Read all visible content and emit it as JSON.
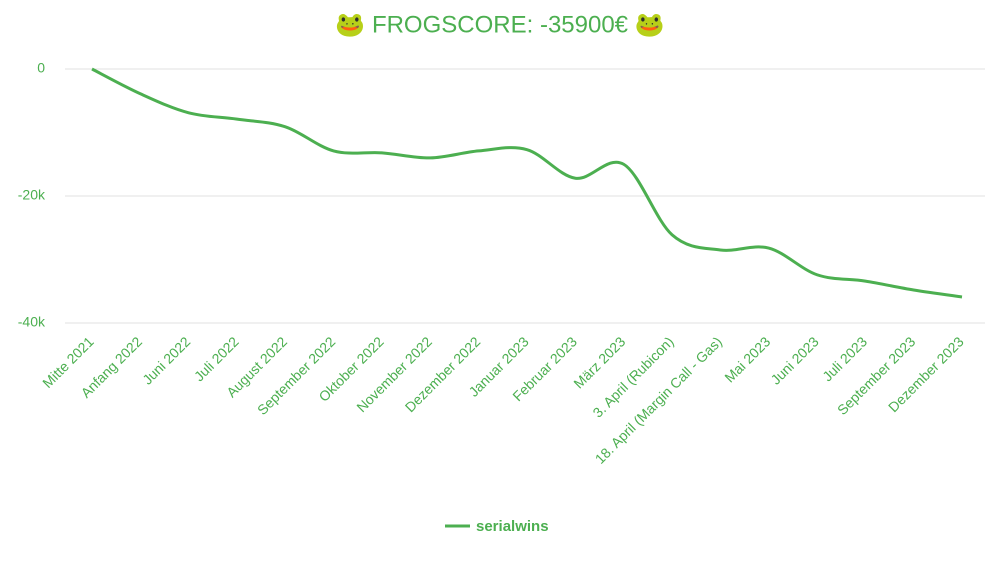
{
  "chart_data": {
    "type": "line",
    "title": "🐸 FROGSCORE: -35900€ 🐸",
    "categories": [
      "Mitte 2021",
      "Anfang 2022",
      "Juni 2022",
      "Juli 2022",
      "August 2022",
      "September 2022",
      "Oktober 2022",
      "November 2022",
      "Dezember 2022",
      "Januar 2023",
      "Februar 2023",
      "März 2023",
      "3. April (Rubicon)",
      "18. April (Margin Call - Gas)",
      "Mai 2023",
      "Juni 2023",
      "Juli 2023",
      "September 2023",
      "Dezember 2023"
    ],
    "series": [
      {
        "name": "serialwins",
        "color": "#4caf50",
        "values": [
          0,
          -3900,
          -6900,
          -7900,
          -9100,
          -12900,
          -13200,
          -14000,
          -12900,
          -12700,
          -17200,
          -15000,
          -26100,
          -28500,
          -28200,
          -32400,
          -33400,
          -34800,
          -35900
        ]
      }
    ],
    "ylim": [
      -40000,
      0
    ],
    "yticks": [
      {
        "value": 0,
        "label": "0"
      },
      {
        "value": -20000,
        "label": "-20k"
      },
      {
        "value": -40000,
        "label": "-40k"
      }
    ],
    "grid": true
  }
}
